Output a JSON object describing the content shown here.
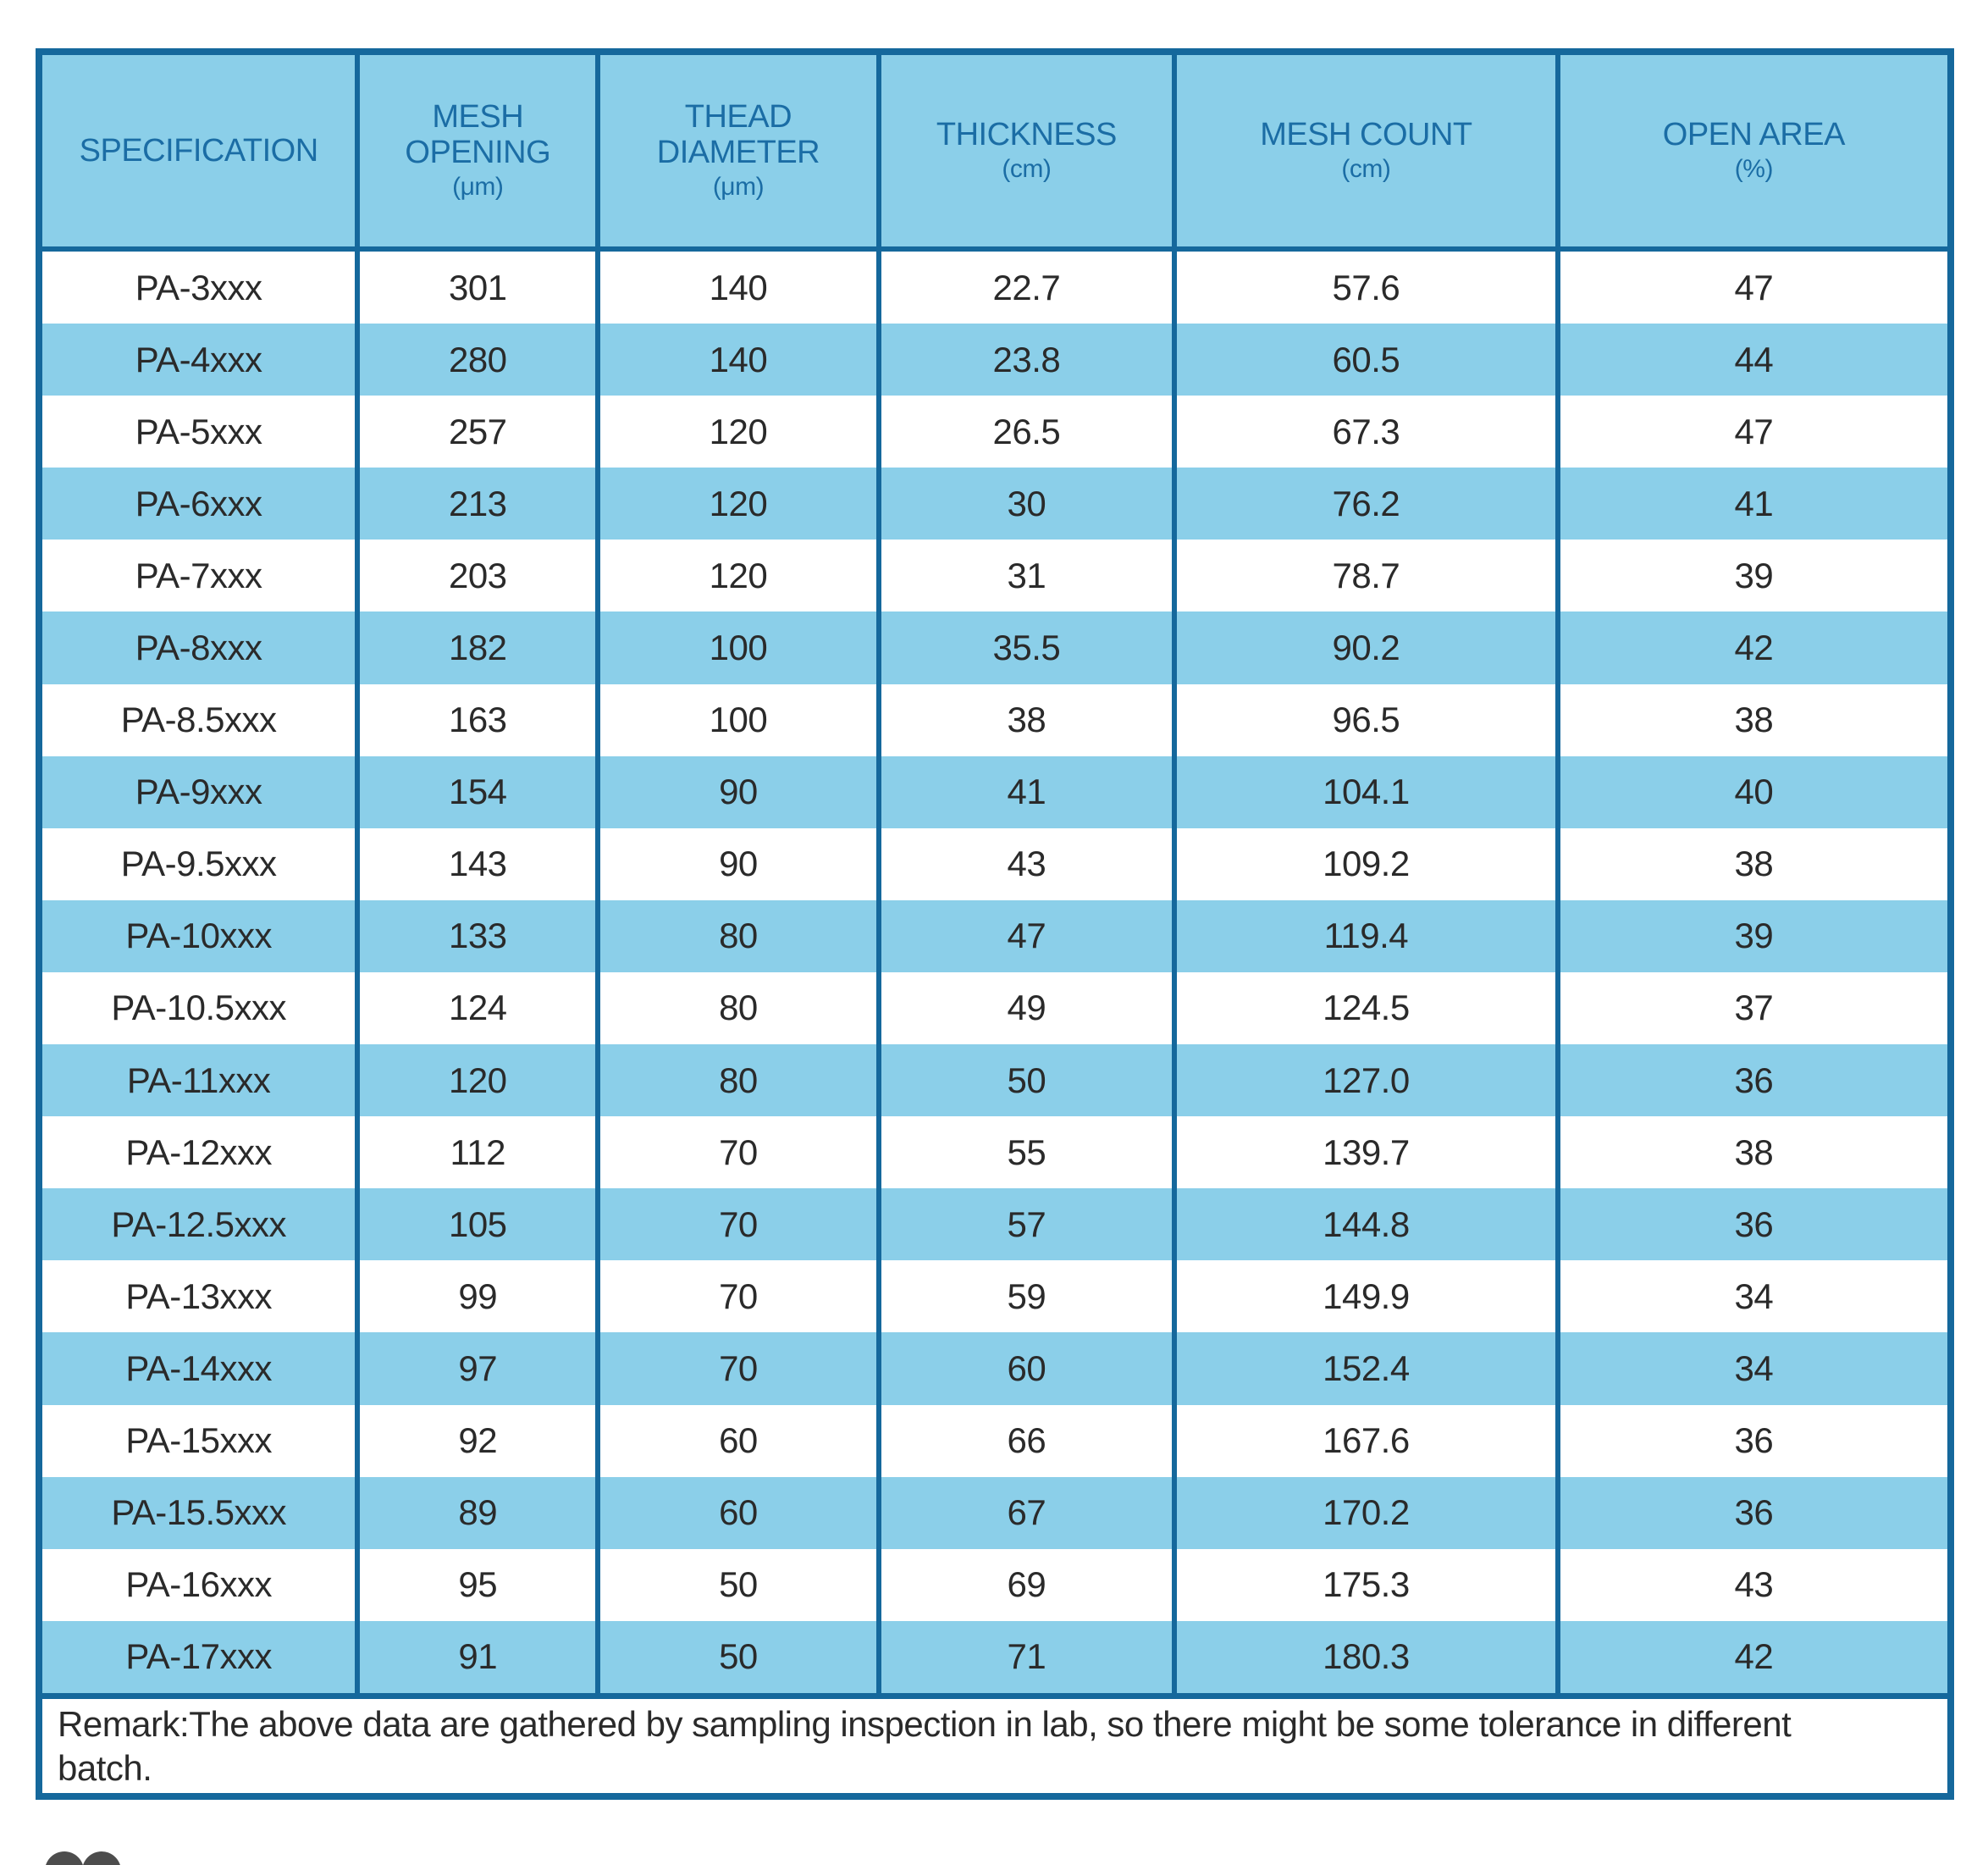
{
  "chart_data": {
    "type": "table",
    "columns": [
      {
        "title": "SPECIFICATION",
        "unit": ""
      },
      {
        "title": "MESH\nOPENING",
        "unit": "(μm)"
      },
      {
        "title": "THEAD\nDIAMETER",
        "unit": "(μm)"
      },
      {
        "title": "THICKNESS",
        "unit": "(cm)"
      },
      {
        "title": "MESH COUNT",
        "unit": "(cm)"
      },
      {
        "title": "OPEN AREA",
        "unit": "(%)"
      }
    ],
    "rows": [
      [
        "PA-3xxx",
        "301",
        "140",
        "22.7",
        "57.6",
        "47"
      ],
      [
        "PA-4xxx",
        "280",
        "140",
        "23.8",
        "60.5",
        "44"
      ],
      [
        "PA-5xxx",
        "257",
        "120",
        "26.5",
        "67.3",
        "47"
      ],
      [
        "PA-6xxx",
        "213",
        "120",
        "30",
        "76.2",
        "41"
      ],
      [
        "PA-7xxx",
        "203",
        "120",
        "31",
        "78.7",
        "39"
      ],
      [
        "PA-8xxx",
        "182",
        "100",
        "35.5",
        "90.2",
        "42"
      ],
      [
        "PA-8.5xxx",
        "163",
        "100",
        "38",
        "96.5",
        "38"
      ],
      [
        "PA-9xxx",
        "154",
        "90",
        "41",
        "104.1",
        "40"
      ],
      [
        "PA-9.5xxx",
        "143",
        "90",
        "43",
        "109.2",
        "38"
      ],
      [
        "PA-10xxx",
        "133",
        "80",
        "47",
        "119.4",
        "39"
      ],
      [
        "PA-10.5xxx",
        "124",
        "80",
        "49",
        "124.5",
        "37"
      ],
      [
        "PA-11xxx",
        "120",
        "80",
        "50",
        "127.0",
        "36"
      ],
      [
        "PA-12xxx",
        "112",
        "70",
        "55",
        "139.7",
        "38"
      ],
      [
        "PA-12.5xxx",
        "105",
        "70",
        "57",
        "144.8",
        "36"
      ],
      [
        "PA-13xxx",
        "99",
        "70",
        "59",
        "149.9",
        "34"
      ],
      [
        "PA-14xxx",
        "97",
        "70",
        "60",
        "152.4",
        "34"
      ],
      [
        "PA-15xxx",
        "92",
        "60",
        "66",
        "167.6",
        "36"
      ],
      [
        "PA-15.5xxx",
        "89",
        "60",
        "67",
        "170.2",
        "36"
      ],
      [
        "PA-16xxx",
        "95",
        "50",
        "69",
        "175.3",
        "43"
      ],
      [
        "PA-17xxx",
        "91",
        "50",
        "71",
        "180.3",
        "42"
      ]
    ],
    "remark": "Remark:The above data are gathered by sampling inspection in lab, so there might be some tolerance in different batch."
  },
  "colors": {
    "border": "#15689c",
    "header_bg": "#8bcfe9",
    "row_alt_bg": "#8bcfe9",
    "header_text": "#1b6da5",
    "body_text": "#2a2a2a"
  }
}
